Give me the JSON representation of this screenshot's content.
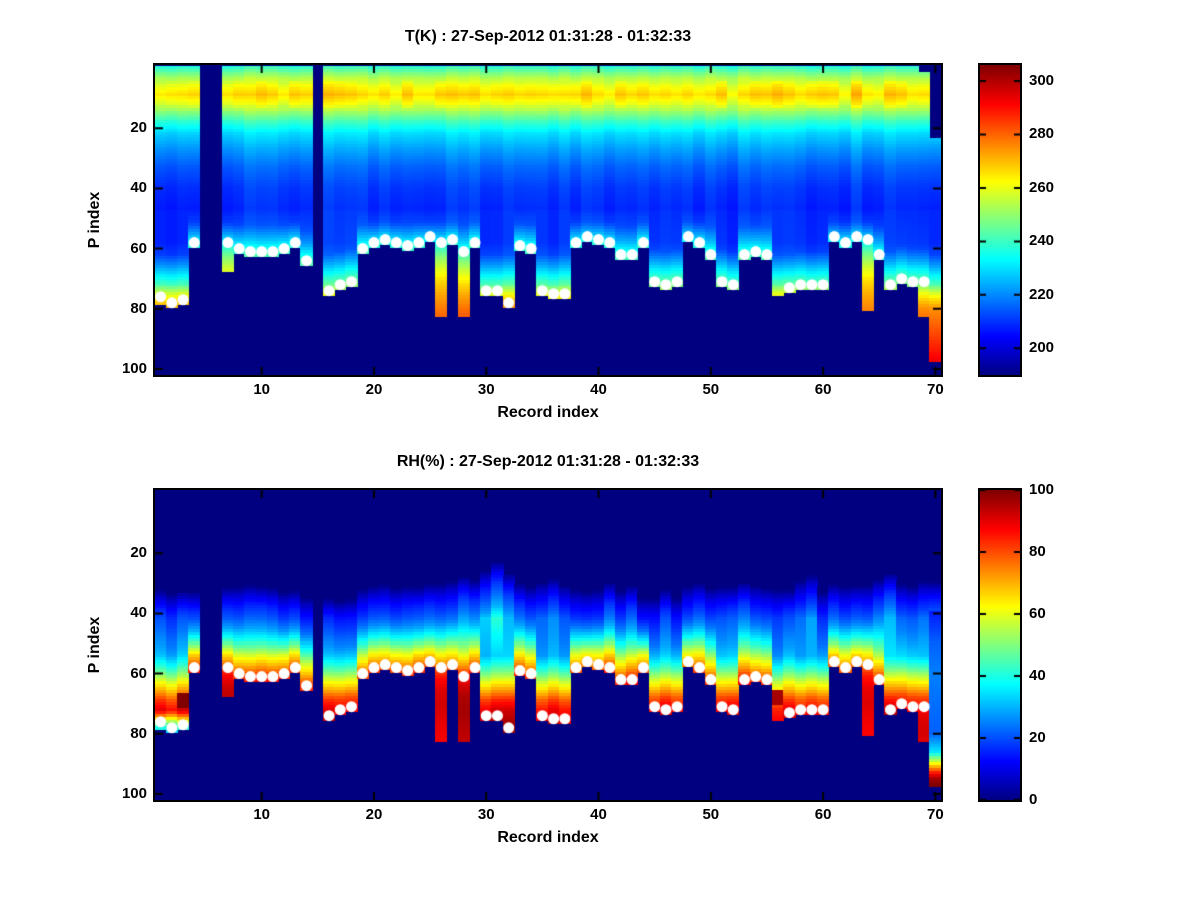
{
  "figure": {
    "background": "#ffffff",
    "plot_background": "#00008f",
    "dot_color": "#ffffff"
  },
  "chart_data": [
    {
      "type": "heatmap",
      "variable": "temperature",
      "title": "T(K) : 27-Sep-2012 01:31:28 - 01:32:33",
      "xlabel": "Record index",
      "ylabel": "P index",
      "x_ticks": [
        10,
        20,
        30,
        40,
        50,
        60,
        70
      ],
      "y_ticks": [
        20,
        40,
        60,
        80,
        100
      ],
      "x_range": [
        0.5,
        70.5
      ],
      "p_range": [
        -1,
        102
      ],
      "y_axis_reversed": true,
      "grid": false,
      "colormap": "jet",
      "clim": [
        190,
        306
      ],
      "colorbar_ticks": [
        200,
        220,
        240,
        260,
        280,
        300
      ],
      "n_records": 70,
      "missing_records": [
        5,
        6,
        15
      ],
      "profile_p": [
        0,
        3,
        6,
        9,
        12,
        15,
        18,
        22,
        27,
        33,
        40,
        47,
        52,
        56,
        60,
        64,
        68,
        72,
        76,
        80,
        86,
        92,
        97,
        101
      ],
      "profile_value": [
        240,
        252,
        262,
        268,
        261,
        250,
        240,
        230,
        223,
        216,
        211,
        209,
        213,
        224,
        237,
        249,
        259,
        267,
        273,
        278,
        284,
        290,
        296,
        298
      ],
      "surface_dot_p": [
        76,
        78,
        77,
        58,
        null,
        null,
        58,
        60,
        61,
        61,
        61,
        60,
        58,
        64,
        null,
        74,
        72,
        71,
        60,
        58,
        57,
        58,
        59,
        58,
        56,
        58,
        57,
        61,
        58,
        74,
        74,
        78,
        59,
        60,
        74,
        75,
        75,
        58,
        56,
        57,
        58,
        62,
        62,
        58,
        71,
        72,
        71,
        56,
        58,
        62,
        71,
        72,
        62,
        61,
        62,
        null,
        73,
        72,
        72,
        72,
        56,
        58,
        56,
        57,
        62,
        72,
        70,
        71,
        71,
        null
      ],
      "data_bottom_p": [
        78,
        79,
        78,
        59,
        null,
        null,
        67,
        61,
        62,
        62,
        62,
        61,
        59,
        65,
        null,
        75,
        73,
        72,
        61,
        59,
        58,
        59,
        60,
        59,
        57,
        82,
        58,
        82,
        59,
        75,
        75,
        79,
        60,
        61,
        75,
        76,
        76,
        59,
        57,
        58,
        59,
        63,
        63,
        59,
        72,
        73,
        72,
        57,
        59,
        63,
        72,
        73,
        63,
        62,
        63,
        75,
        74,
        73,
        73,
        73,
        57,
        59,
        57,
        80,
        63,
        73,
        71,
        72,
        82,
        97
      ],
      "data_top_p": {
        "69": 2,
        "70": 24
      }
    },
    {
      "type": "heatmap",
      "variable": "relative_humidity",
      "title": "RH(%) : 27-Sep-2012 01:31:28 - 01:32:33",
      "xlabel": "Record index",
      "ylabel": "P index",
      "x_ticks": [
        10,
        20,
        30,
        40,
        50,
        60,
        70
      ],
      "y_ticks": [
        20,
        40,
        60,
        80,
        100
      ],
      "x_range": [
        0.5,
        70.5
      ],
      "p_range": [
        -1,
        102
      ],
      "y_axis_reversed": true,
      "grid": false,
      "colormap": "jet",
      "clim": [
        0,
        100
      ],
      "colorbar_ticks": [
        0,
        20,
        40,
        60,
        80,
        100
      ],
      "n_records": 70,
      "missing_records": [
        5,
        6,
        15
      ],
      "profile_p": [
        30,
        33,
        36,
        40,
        44,
        48,
        51,
        54,
        57,
        60,
        63,
        67,
        72,
        78,
        85,
        92,
        97
      ],
      "profile_value": [
        0,
        8,
        14,
        20,
        27,
        38,
        48,
        60,
        70,
        81,
        88,
        92,
        93,
        91,
        89,
        87,
        86
      ],
      "surface_dot_p": [
        76,
        78,
        77,
        58,
        null,
        null,
        58,
        60,
        61,
        61,
        61,
        60,
        58,
        64,
        null,
        74,
        72,
        71,
        60,
        58,
        57,
        58,
        59,
        58,
        56,
        58,
        57,
        61,
        58,
        74,
        74,
        78,
        59,
        60,
        74,
        75,
        75,
        58,
        56,
        57,
        58,
        62,
        62,
        58,
        71,
        72,
        71,
        56,
        58,
        62,
        71,
        72,
        62,
        61,
        62,
        null,
        73,
        72,
        72,
        72,
        56,
        58,
        56,
        57,
        62,
        72,
        70,
        71,
        71,
        null
      ],
      "data_bottom_p": [
        78,
        79,
        78,
        59,
        null,
        null,
        67,
        61,
        62,
        62,
        62,
        61,
        59,
        65,
        null,
        75,
        73,
        72,
        61,
        59,
        58,
        59,
        60,
        59,
        57,
        82,
        58,
        82,
        59,
        75,
        75,
        79,
        60,
        61,
        75,
        76,
        76,
        59,
        57,
        58,
        59,
        63,
        63,
        59,
        72,
        73,
        72,
        57,
        59,
        63,
        72,
        73,
        63,
        62,
        63,
        75,
        74,
        73,
        73,
        73,
        57,
        59,
        57,
        80,
        63,
        73,
        71,
        72,
        82,
        97
      ],
      "data_top_p": {},
      "moist_top_p": [
        33,
        33,
        34,
        34,
        null,
        null,
        32,
        31,
        31,
        32,
        32,
        33,
        33,
        34,
        null,
        36,
        36,
        35,
        31,
        31,
        30,
        31,
        31,
        32,
        31,
        30,
        29,
        29,
        30,
        26,
        24,
        28,
        31,
        31,
        29,
        29,
        30,
        31,
        32,
        31,
        31,
        32,
        32,
        34,
        34,
        33,
        34,
        30,
        30,
        31,
        31,
        32,
        31,
        30,
        31,
        31,
        33,
        28,
        27,
        32,
        31,
        30,
        31,
        30,
        29,
        28,
        30,
        31,
        29,
        30
      ],
      "saturated_spots": [
        {
          "record": 3,
          "p_from": 67,
          "p_to": 71,
          "value": 100
        },
        {
          "record": 56,
          "p_from": 66,
          "p_to": 70,
          "value": 100
        },
        {
          "record": 70,
          "p_from": 95,
          "p_to": 97,
          "value": 100
        }
      ],
      "dry_taper_records": [
        1,
        2,
        3
      ],
      "record70_deep_profile": {
        "p": [
          40,
          50,
          60,
          72,
          80,
          86,
          89,
          91,
          93,
          95,
          97
        ],
        "value": [
          15,
          22,
          25,
          23,
          22,
          35,
          55,
          70,
          85,
          96,
          100
        ]
      }
    }
  ]
}
